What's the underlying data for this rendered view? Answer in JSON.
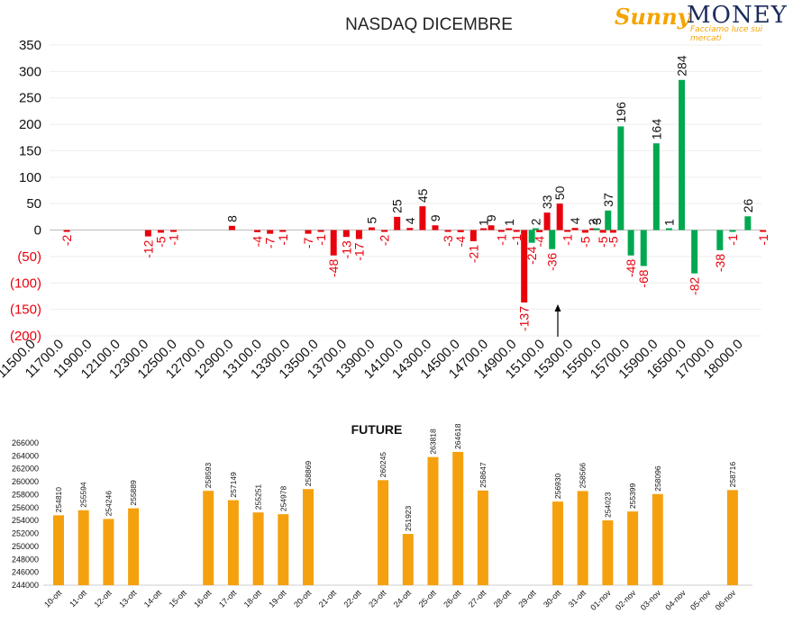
{
  "brand": {
    "name_a": "Sunny",
    "name_b": "MONEY",
    "tagline": "Facciamo luce sui mercati"
  },
  "colors": {
    "red": "#e8000c",
    "green": "#00a850",
    "orange": "#f5a10f",
    "neg_label": "#e8000c",
    "arrow": "#000000"
  },
  "chart_data": [
    {
      "type": "bar",
      "title": "NASDAQ DICEMBRE",
      "ylim": [
        -200,
        350
      ],
      "yticks": [
        350,
        300,
        250,
        200,
        150,
        100,
        50,
        0,
        -50,
        -100,
        -150,
        -200
      ],
      "ytick_labels": [
        "350",
        "300",
        "250",
        "200",
        "150",
        "100",
        "50",
        "0",
        "(50)",
        "(100)",
        "(150)",
        "(200)"
      ],
      "grid": true,
      "x_tick_labels": [
        "11500.0",
        "11700.0",
        "11900.0",
        "12100.0",
        "12300.0",
        "12500.0",
        "12700.0",
        "12900.0",
        "13100.0",
        "13300.0",
        "13500.0",
        "13700.0",
        "13900.0",
        "14100.0",
        "14300.0",
        "14500.0",
        "14700.0",
        "14900.0",
        "15100.0",
        "15300.0",
        "15500.0",
        "15700.0",
        "15900.0",
        "16500.0",
        "17000.0",
        "18000.0"
      ],
      "series": [
        {
          "color": "red",
          "points": [
            {
              "pos": 0.5,
              "value": -2
            },
            {
              "pos": 3.7,
              "value": -12
            },
            {
              "pos": 4.2,
              "value": -5
            },
            {
              "pos": 4.7,
              "value": -1
            },
            {
              "pos": 7.0,
              "value": 8
            },
            {
              "pos": 8.0,
              "value": -4
            },
            {
              "pos": 8.5,
              "value": -7
            },
            {
              "pos": 9.0,
              "value": -1
            },
            {
              "pos": 10.0,
              "value": -7
            },
            {
              "pos": 10.5,
              "value": -1
            },
            {
              "pos": 11.0,
              "value": -48
            },
            {
              "pos": 11.5,
              "value": -13
            },
            {
              "pos": 12.0,
              "value": -17
            },
            {
              "pos": 12.5,
              "value": 5
            },
            {
              "pos": 13.0,
              "value": -2
            },
            {
              "pos": 13.5,
              "value": 25
            },
            {
              "pos": 14.0,
              "value": 4
            },
            {
              "pos": 14.5,
              "value": 45
            },
            {
              "pos": 15.0,
              "value": 9
            },
            {
              "pos": 15.5,
              "value": -3
            },
            {
              "pos": 16.0,
              "value": -4
            },
            {
              "pos": 16.5,
              "value": -21
            },
            {
              "pos": 16.9,
              "value": 1
            },
            {
              "pos": 17.2,
              "value": 9
            },
            {
              "pos": 17.6,
              "value": -1
            },
            {
              "pos": 17.9,
              "value": 1
            },
            {
              "pos": 18.2,
              "value": -1
            },
            {
              "pos": 18.5,
              "value": -137
            },
            {
              "pos": 19.1,
              "value": -4
            },
            {
              "pos": 19.4,
              "value": 33
            },
            {
              "pos": 19.9,
              "value": 50
            },
            {
              "pos": 20.2,
              "value": -1
            },
            {
              "pos": 20.5,
              "value": 4
            },
            {
              "pos": 20.9,
              "value": -5
            },
            {
              "pos": 21.2,
              "value": 2
            },
            {
              "pos": 21.6,
              "value": -5
            },
            {
              "pos": 22.0,
              "value": -5
            }
          ]
        },
        {
          "color": "green",
          "points": [
            {
              "pos": 18.8,
              "value": -24
            },
            {
              "pos": 18.95,
              "value": 2
            },
            {
              "pos": 19.6,
              "value": -36
            },
            {
              "pos": 21.35,
              "value": 3
            },
            {
              "pos": 21.8,
              "value": 37
            },
            {
              "pos": 22.3,
              "value": 196
            },
            {
              "pos": 22.7,
              "value": -48
            },
            {
              "pos": 23.2,
              "value": -68
            },
            {
              "pos": 23.7,
              "value": 164
            },
            {
              "pos": 24.2,
              "value": 1
            },
            {
              "pos": 24.7,
              "value": 284
            },
            {
              "pos": 25.2,
              "value": -82
            },
            {
              "pos": 26.2,
              "value": -38
            },
            {
              "pos": 26.7,
              "value": -1
            },
            {
              "pos": 27.3,
              "value": 26
            }
          ]
        },
        {
          "color": "red",
          "points": [
            {
              "pos": 27.9,
              "value": -1
            }
          ]
        }
      ]
    },
    {
      "type": "bar",
      "title": "FUTURE",
      "ylim": [
        244000,
        266000
      ],
      "yticks": [
        244000,
        246000,
        248000,
        250000,
        252000,
        254000,
        256000,
        258000,
        260000,
        262000,
        264000,
        266000
      ],
      "categories": [
        "10-ott",
        "11-ott",
        "12-ott",
        "13-ott",
        "14-ott",
        "15-ott",
        "16-ott",
        "17-ott",
        "18-ott",
        "19-ott",
        "20-ott",
        "21-ott",
        "22-ott",
        "23-ott",
        "24-ott",
        "25-ott",
        "26-ott",
        "27-ott",
        "28-ott",
        "29-ott",
        "30-ott",
        "31-ott",
        "01-nov",
        "02-nov",
        "03-nov",
        "04-nov",
        "05-nov",
        "06-nov"
      ],
      "values": [
        254810,
        255594,
        254246,
        255889,
        null,
        null,
        258593,
        257149,
        255251,
        254978,
        258869,
        null,
        null,
        260245,
        251923,
        263818,
        264618,
        258647,
        null,
        null,
        256930,
        258566,
        254023,
        255399,
        258096,
        null,
        null,
        258716
      ],
      "grid": false
    }
  ]
}
